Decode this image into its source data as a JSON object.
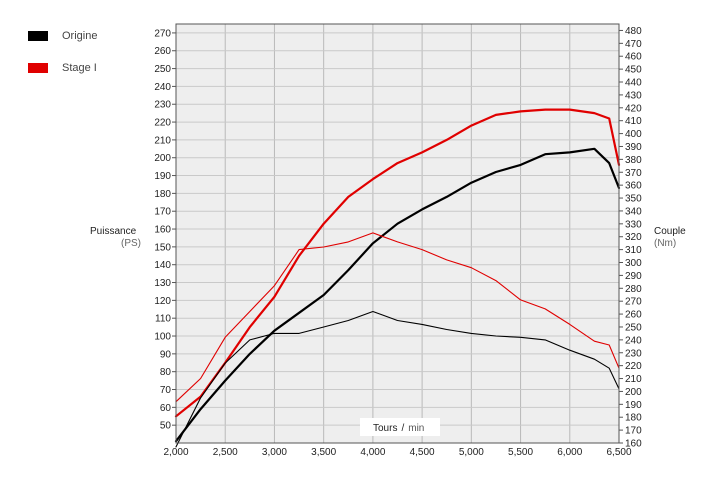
{
  "chart_data": {
    "type": "line",
    "xlabel": "Tours",
    "xlabel_unit": "min",
    "ylabel_left": "Puissance",
    "ylabel_left_unit": "(PS)",
    "ylabel_right": "Couple",
    "ylabel_right_unit": "(Nm)",
    "xlim": [
      2000,
      6500
    ],
    "ylim_left": [
      40,
      275
    ],
    "ylim_right": [
      160,
      485
    ],
    "x_ticks": [
      2000,
      2500,
      3000,
      3500,
      4000,
      4500,
      5000,
      5500,
      6000,
      6500
    ],
    "x_tick_labels": [
      "2,000",
      "2,500",
      "3,000",
      "3,500",
      "4,000",
      "4,500",
      "5,000",
      "5,500",
      "6,000",
      "6,500"
    ],
    "y_left_ticks": [
      50,
      60,
      70,
      80,
      90,
      100,
      110,
      120,
      130,
      140,
      150,
      160,
      170,
      180,
      190,
      200,
      210,
      220,
      230,
      240,
      250,
      260,
      270
    ],
    "y_right_ticks": [
      160,
      170,
      180,
      190,
      200,
      210,
      220,
      230,
      240,
      250,
      260,
      270,
      280,
      290,
      300,
      310,
      320,
      330,
      340,
      350,
      360,
      370,
      380,
      390,
      400,
      410,
      420,
      430,
      440,
      450,
      460,
      470,
      480
    ],
    "grid": true,
    "legend_position": "top-left",
    "legend": [
      {
        "label": "Origine",
        "color": "#000000"
      },
      {
        "label": "Stage I",
        "color": "#e00000"
      }
    ],
    "x": [
      2000,
      2250,
      2500,
      2750,
      3000,
      3250,
      3500,
      3750,
      4000,
      4250,
      4500,
      4750,
      5000,
      5250,
      5500,
      5750,
      6000,
      6250,
      6400,
      6500
    ],
    "series": [
      {
        "name": "Origine",
        "measure": "Puissance",
        "axis": "left",
        "color": "#000000",
        "style": "solid",
        "values": [
          41,
          59,
          75,
          90,
          103,
          113,
          123,
          137,
          152,
          163,
          171,
          178,
          186,
          192,
          196,
          202,
          203,
          205,
          197,
          183
        ]
      },
      {
        "name": "Stage I",
        "measure": "Puissance",
        "axis": "left",
        "color": "#e00000",
        "style": "solid",
        "values": [
          55,
          66,
          85,
          105,
          122,
          145,
          163,
          178,
          188,
          197,
          203,
          210,
          218,
          224,
          226,
          227,
          227,
          225,
          222,
          196
        ]
      },
      {
        "name": "Origine",
        "measure": "Couple",
        "axis": "right",
        "color": "#000000",
        "style": "thin",
        "values": [
          157,
          195,
          222,
          240,
          245,
          245,
          250,
          255,
          262,
          255,
          252,
          248,
          245,
          243,
          242,
          240,
          232,
          225,
          218,
          202
        ]
      },
      {
        "name": "Stage I",
        "measure": "Couple",
        "axis": "right",
        "color": "#e00000",
        "style": "thin",
        "values": [
          192,
          210,
          242,
          262,
          282,
          310,
          312,
          316,
          323,
          316,
          310,
          302,
          296,
          286,
          271,
          264,
          252,
          239,
          236,
          218
        ]
      }
    ]
  }
}
